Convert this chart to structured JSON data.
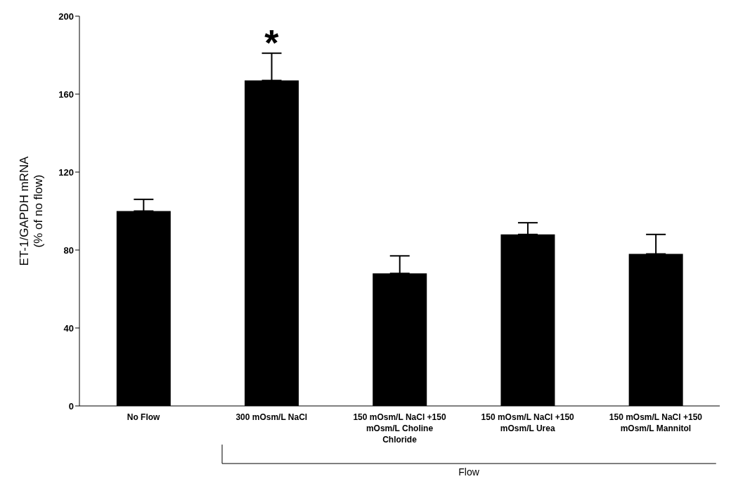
{
  "chart_data": {
    "type": "bar",
    "ylabel": "ET-1/GAPDH mRNA (% of no flow)",
    "categories": [
      "No Flow",
      "300 mOsm/L NaCl",
      "150 mOsm/L NaCl +150 mOsm/L Choline Chloride",
      "150 mOsm/L NaCl +150 mOsm/L Urea",
      "150 mOsm/L NaCl +150 mOsm/L Mannitol"
    ],
    "values": [
      100,
      167,
      68,
      88,
      78
    ],
    "errors": [
      [
        100,
        106
      ],
      [
        167,
        181
      ],
      [
        68,
        77
      ],
      [
        88,
        94
      ],
      [
        78,
        88
      ]
    ],
    "color": "#000000",
    "ylim": [
      0,
      200
    ],
    "yticks": [
      0,
      40,
      80,
      120,
      160,
      200
    ],
    "grid": false,
    "legend": false,
    "annotations": [
      "*",
      "Flow"
    ]
  }
}
